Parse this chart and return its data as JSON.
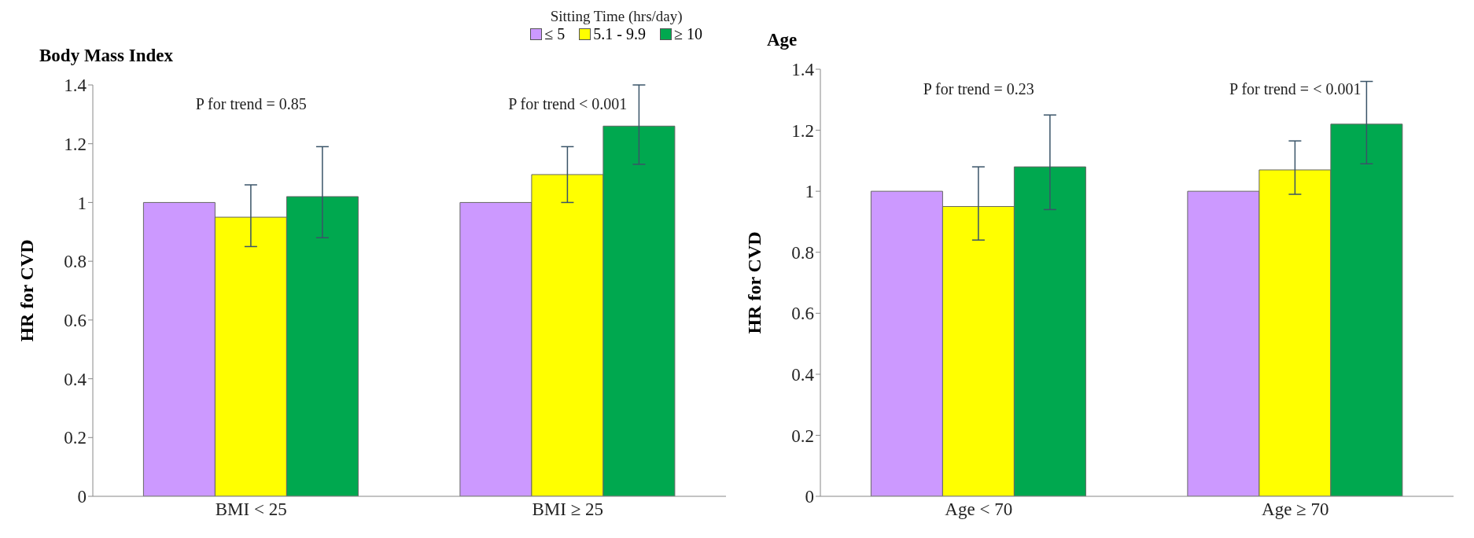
{
  "chart_data": [
    {
      "type": "bar",
      "title": "Body Mass Index",
      "ylabel": "HR for CVD",
      "legend_title": "Sitting Time (hrs/day)",
      "categories": [
        "BMI < 25",
        "BMI ≥ 25"
      ],
      "series": [
        {
          "name": "≤ 5",
          "color": "#cc99ff",
          "values": [
            1.0,
            1.0
          ],
          "errors": [
            null,
            null
          ]
        },
        {
          "name": "5.1 - 9.9",
          "color": "#ffff00",
          "values": [
            0.95,
            1.095
          ],
          "errors": [
            [
              0.85,
              1.06
            ],
            [
              1.0,
              1.19
            ]
          ]
        },
        {
          "name": "≥ 10",
          "color": "#00a84f",
          "values": [
            1.02,
            1.26
          ],
          "errors": [
            [
              0.88,
              1.19
            ],
            [
              1.13,
              1.4
            ]
          ]
        }
      ],
      "ylim": [
        0,
        1.4
      ],
      "yticks": [
        0,
        0.2,
        0.4,
        0.6,
        0.8,
        1,
        1.2,
        1.4
      ],
      "grid": false,
      "legend": "top right",
      "annotations": [
        "P for trend = 0.85",
        "P for trend < 0.001"
      ]
    },
    {
      "type": "bar",
      "title": "Age",
      "ylabel": "HR for CVD",
      "categories": [
        "Age < 70",
        "Age ≥ 70"
      ],
      "series": [
        {
          "color": "#cc99ff",
          "values": [
            1.0,
            1.0
          ],
          "errors": [
            null,
            null
          ]
        },
        {
          "color": "#ffff00",
          "values": [
            0.95,
            1.07
          ],
          "errors": [
            [
              0.84,
              1.08
            ],
            [
              0.99,
              1.165
            ]
          ]
        },
        {
          "color": "#00a84f",
          "values": [
            1.08,
            1.22
          ],
          "errors": [
            [
              0.94,
              1.25
            ],
            [
              1.09,
              1.36
            ]
          ]
        }
      ],
      "ylim": [
        0,
        1.4
      ],
      "yticks": [
        0,
        0.2,
        0.4,
        0.6,
        0.8,
        1,
        1.2,
        1.4
      ],
      "grid": false,
      "legend": false,
      "annotations": [
        "P for trend = 0.23",
        "P for trend = < 0.001"
      ]
    }
  ]
}
